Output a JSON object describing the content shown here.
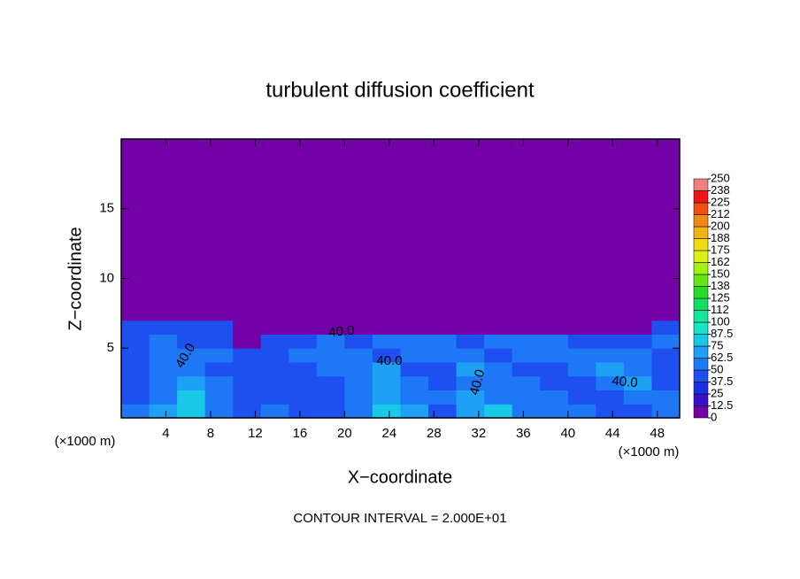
{
  "chart_data": {
    "type": "contour",
    "title": "turbulent diffusion coefficient",
    "x_label": "X−coordinate",
    "y_label": "Z−coordinate",
    "x_unit": "(×1000 m)",
    "y_unit": "(×1000 m)",
    "footer": "CONTOUR INTERVAL = 2.000E+01",
    "xlim": [
      0,
      50
    ],
    "ylim": [
      0,
      20
    ],
    "xticks": [
      4,
      8,
      12,
      16,
      20,
      24,
      28,
      32,
      36,
      40,
      44,
      48
    ],
    "yticks": [
      5,
      10,
      15
    ],
    "x_edges": [
      0,
      2.5,
      5,
      7.5,
      10,
      12.5,
      15,
      17.5,
      20,
      22.5,
      25,
      27.5,
      30,
      32.5,
      35,
      37.5,
      40,
      42.5,
      45,
      47.5,
      50
    ],
    "z_edges": [
      0,
      1,
      2,
      3,
      4,
      5,
      6,
      7,
      20
    ],
    "field": [
      [
        50,
        70,
        80,
        60,
        40,
        55,
        45,
        40,
        60,
        75,
        65,
        45,
        70,
        75,
        55,
        60,
        50,
        45,
        40,
        55
      ],
      [
        45,
        60,
        75,
        55,
        40,
        45,
        40,
        45,
        55,
        65,
        60,
        50,
        70,
        55,
        55,
        50,
        45,
        40,
        60,
        50
      ],
      [
        45,
        55,
        65,
        50,
        45,
        40,
        40,
        45,
        50,
        70,
        55,
        40,
        60,
        55,
        50,
        45,
        45,
        55,
        65,
        45
      ],
      [
        40,
        50,
        60,
        45,
        40,
        45,
        45,
        50,
        60,
        65,
        45,
        40,
        65,
        50,
        45,
        45,
        50,
        65,
        60,
        45
      ],
      [
        45,
        55,
        55,
        50,
        40,
        45,
        50,
        55,
        50,
        40,
        55,
        60,
        55,
        45,
        50,
        55,
        60,
        55,
        50,
        45
      ],
      [
        45,
        50,
        45,
        45,
        0,
        40,
        45,
        50,
        45,
        55,
        60,
        55,
        45,
        50,
        55,
        50,
        45,
        40,
        45,
        50
      ],
      [
        45,
        45,
        40,
        40,
        0,
        0,
        0,
        0,
        0,
        0,
        0,
        0,
        0,
        0,
        0,
        0,
        0,
        0,
        0,
        45
      ],
      [
        0,
        0,
        0,
        0,
        0,
        0,
        0,
        0,
        0,
        0,
        0,
        0,
        0,
        0,
        0,
        0,
        0,
        0,
        0,
        0
      ]
    ],
    "contour_labels": [
      "40.0",
      "40.0",
      "40.0",
      "40.0",
      "40.0"
    ],
    "colorbar": {
      "levels": [
        0,
        12.5,
        25,
        37.5,
        50,
        62.5,
        75,
        87.5,
        100,
        {
          "value": 112.5,
          "label": "112"
        },
        125,
        {
          "value": 137.5,
          "label": "138"
        },
        150,
        {
          "value": 162.5,
          "label": "162"
        },
        175,
        {
          "value": 187.5,
          "label": "188"
        },
        200,
        {
          "value": 212.5,
          "label": "212"
        },
        225,
        {
          "value": 237.5,
          "label": "238"
        },
        250
      ],
      "colors": [
        "#7400a8",
        "#3c10c8",
        "#1a30e0",
        "#1e50f0",
        "#1e78f5",
        "#1ea0f5",
        "#19c8e6",
        "#14e6c8",
        "#14e69b",
        "#14dc64",
        "#28dc28",
        "#64e614",
        "#a0f014",
        "#dcf014",
        "#f0dc14",
        "#f0b414",
        "#f08c14",
        "#f05014",
        "#f01414",
        "#f08080"
      ]
    }
  }
}
